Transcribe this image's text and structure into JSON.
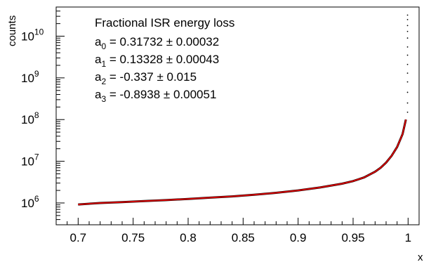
{
  "chart_data": {
    "type": "line",
    "xlabel": "x",
    "ylabel": "counts",
    "xlim": [
      0.68,
      1.01
    ],
    "ylim": [
      300000,
      50000000000
    ],
    "log_y": true,
    "grid": false,
    "x_ticks": [
      "0.7",
      "0.75",
      "0.8",
      "0.85",
      "0.9",
      "0.95",
      "1"
    ],
    "x_tick_values": [
      0.7,
      0.75,
      0.8,
      0.85,
      0.9,
      0.95,
      1.0
    ],
    "y_ticks": [
      {
        "value": 1000000,
        "base": "10",
        "exp": "6"
      },
      {
        "value": 10000000,
        "base": "10",
        "exp": "7"
      },
      {
        "value": 100000000,
        "base": "10",
        "exp": "8"
      },
      {
        "value": 1000000000,
        "base": "10",
        "exp": "9"
      },
      {
        "value": 10000000000,
        "base": "10",
        "exp": "10"
      }
    ],
    "legend": {
      "position": "top-left",
      "title": "Fractional ISR energy loss",
      "entries": [
        {
          "sym": "a",
          "sub": "0",
          "text": " = 0.31732 ± 0.00032"
        },
        {
          "sym": "a",
          "sub": "1",
          "text": " = 0.13328 ± 0.00043"
        },
        {
          "sym": "a",
          "sub": "2",
          "text": " = -0.337 ± 0.015"
        },
        {
          "sym": "a",
          "sub": "3",
          "text": " = -0.8938 ± 0.00051"
        }
      ]
    },
    "series": [
      {
        "kind": "histogram",
        "color": "#000000",
        "x": [
          0.7,
          0.72,
          0.74,
          0.76,
          0.78,
          0.8,
          0.82,
          0.84,
          0.86,
          0.88,
          0.9,
          0.92,
          0.94,
          0.95,
          0.96,
          0.97,
          0.975,
          0.98,
          0.985,
          0.99,
          0.995,
          0.998
        ],
        "values": [
          920000,
          1000000,
          1050000,
          1110000,
          1170000,
          1250000,
          1340000,
          1440000,
          1570000,
          1750000,
          2000000,
          2350000,
          2900000,
          3350000,
          4100000,
          5600000,
          7000000,
          9300000,
          13500000,
          22000000,
          45000000,
          100000000
        ]
      },
      {
        "kind": "fit",
        "color": "#d40000",
        "x": [
          0.7,
          0.72,
          0.74,
          0.76,
          0.78,
          0.8,
          0.82,
          0.84,
          0.86,
          0.88,
          0.9,
          0.92,
          0.94,
          0.95,
          0.96,
          0.97,
          0.975,
          0.98,
          0.985,
          0.99,
          0.995,
          0.998
        ],
        "values": [
          920000,
          1000000,
          1050000,
          1110000,
          1170000,
          1250000,
          1340000,
          1440000,
          1570000,
          1750000,
          2000000,
          2350000,
          2900000,
          3350000,
          4100000,
          5600000,
          7000000,
          9300000,
          13500000,
          22000000,
          45000000,
          100000000
        ]
      },
      {
        "kind": "last-bin-scatter",
        "color": "#000000",
        "x": [
          0.9995,
          0.9995,
          0.9995,
          0.9995,
          0.9995,
          0.9995,
          0.9995,
          0.9995,
          0.9995,
          0.9995,
          0.9995,
          0.9995,
          0.9995
        ],
        "values": [
          150000000,
          250000000,
          450000000,
          800000000,
          1300000000,
          2100000000,
          3500000000,
          5500000000,
          9000000000,
          13000000000,
          18000000000,
          25000000000,
          32000000000
        ]
      }
    ]
  }
}
